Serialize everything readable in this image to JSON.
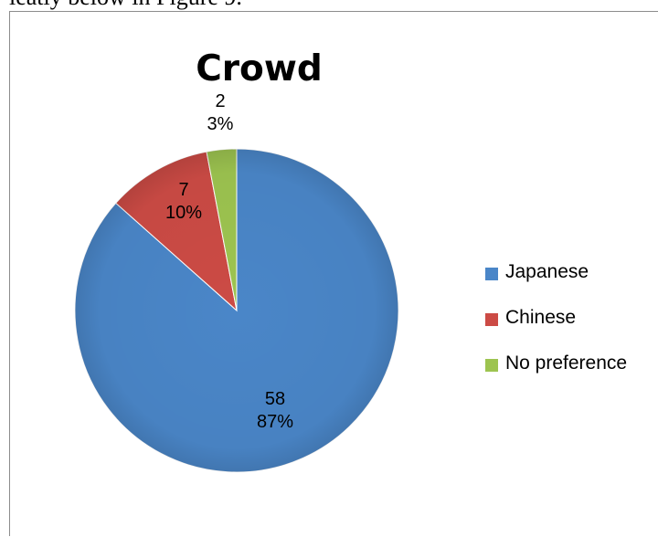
{
  "doc": {
    "top_text": "leatly below in Figure 9."
  },
  "chart_data": {
    "type": "pie",
    "title": "Crowd",
    "categories": [
      "Japanese",
      "Chinese",
      "No preference"
    ],
    "values": [
      58,
      7,
      2
    ],
    "percent_labels": [
      "87%",
      "10%",
      "3%"
    ],
    "colors": [
      "#4A86C8",
      "#CC4B45",
      "#9DC450"
    ],
    "legend_position": "right",
    "start": "12 o'clock, clockwise"
  }
}
